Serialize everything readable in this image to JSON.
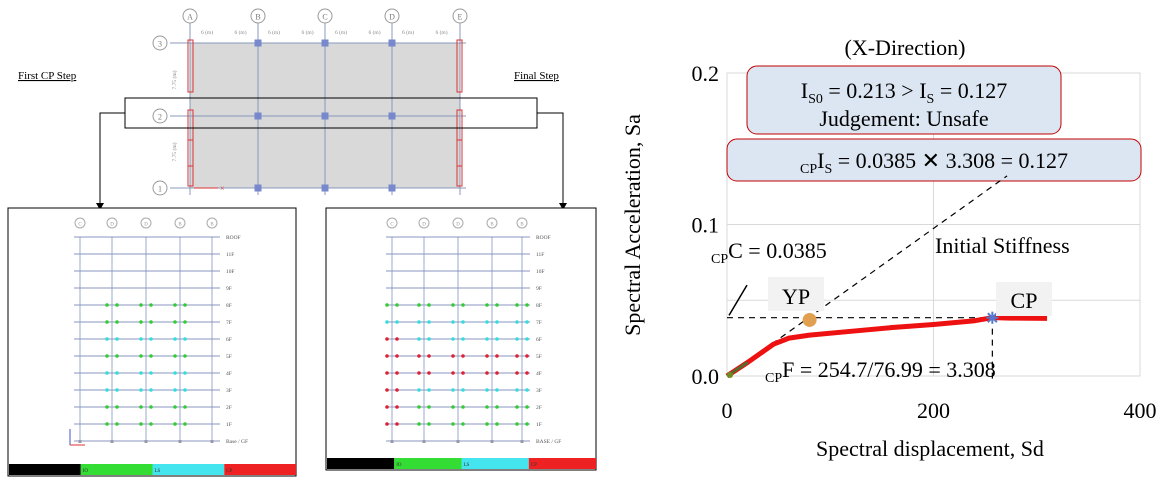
{
  "plan": {
    "grid_letters": [
      "A",
      "B",
      "C",
      "D",
      "E"
    ],
    "grid_numbers": [
      "1",
      "2",
      "3"
    ],
    "bay_labels": [
      "6 (m)",
      "6 (m)",
      "6 (m)",
      "6 (m)",
      "6 (m)",
      "6 (m)",
      "6 (m)",
      "6 (m)"
    ],
    "side_labels": [
      "7.75 (m)",
      "7.75 (m)"
    ],
    "left_title": "First CP Step",
    "right_title": "Final Step"
  },
  "elevation": {
    "columns": [
      "C",
      "D",
      "D",
      "B",
      "B"
    ],
    "story_labels_left": [
      "ROOF",
      "11F",
      "10F",
      "9F",
      "8F",
      "7F",
      "6F",
      "5F",
      "4F",
      "3F",
      "2F",
      "1F",
      "Base / GF"
    ],
    "story_labels_right": [
      "ROOF",
      "11F",
      "10F",
      "9F",
      "8F",
      "7F",
      "6F",
      "5F",
      "4F",
      "3F",
      "2F",
      "1F",
      "BASE / GF"
    ],
    "legend": [
      "IO",
      "LS",
      "CP"
    ],
    "legend_colors": [
      "#000000",
      "#33dd33",
      "#44e5ee",
      "#ee2222"
    ],
    "hinge_colors": {
      "green": "#33cc33",
      "cyan": "#33dddd",
      "red": "#dd2233"
    }
  },
  "chart_data": {
    "type": "line",
    "title": "(X-Direction)",
    "xlabel": "Spectral displacement, Sd",
    "ylabel": "Spectral Acceleration, Sa",
    "xlim": [
      0,
      400
    ],
    "ylim": [
      0,
      0.2
    ],
    "xticks": [
      "0",
      "200",
      "400"
    ],
    "yticks": [
      "0.0",
      "0.1",
      "0.2"
    ],
    "grid": true,
    "series": [
      {
        "x": [
          0,
          20,
          45,
          60,
          80,
          120,
          160,
          200,
          240,
          257,
          275,
          310
        ],
        "y": [
          0,
          0.009,
          0.021,
          0.025,
          0.027,
          0.0295,
          0.032,
          0.034,
          0.0365,
          0.0385,
          0.0382,
          0.038
        ]
      }
    ],
    "stiffness_line": {
      "x": [
        0,
        310
      ],
      "y": [
        0,
        0.142
      ]
    },
    "points": {
      "yp": {
        "x": 80,
        "y": 0.037,
        "label": "YP"
      },
      "cp": {
        "x": 257,
        "y": 0.0385,
        "label": "CP"
      }
    },
    "annotations": {
      "box1_line1": "IS0 = 0.213 > IS = 0.127",
      "box1_line2": "Judgement: Unsafe",
      "box2": "CPIS = 0.0385 × 3.308 = 0.127",
      "c_label": "CPC = 0.0385",
      "stiffness_label": "Initial Stiffness",
      "f_label": "CPF = 254.7/76.99 = 3.308"
    },
    "colors": {
      "curve": "#ee1111",
      "yp": "#e0a050",
      "cp": "#5577cc",
      "box_fill": "#dce6f2",
      "box_stroke": "#c00000"
    }
  }
}
